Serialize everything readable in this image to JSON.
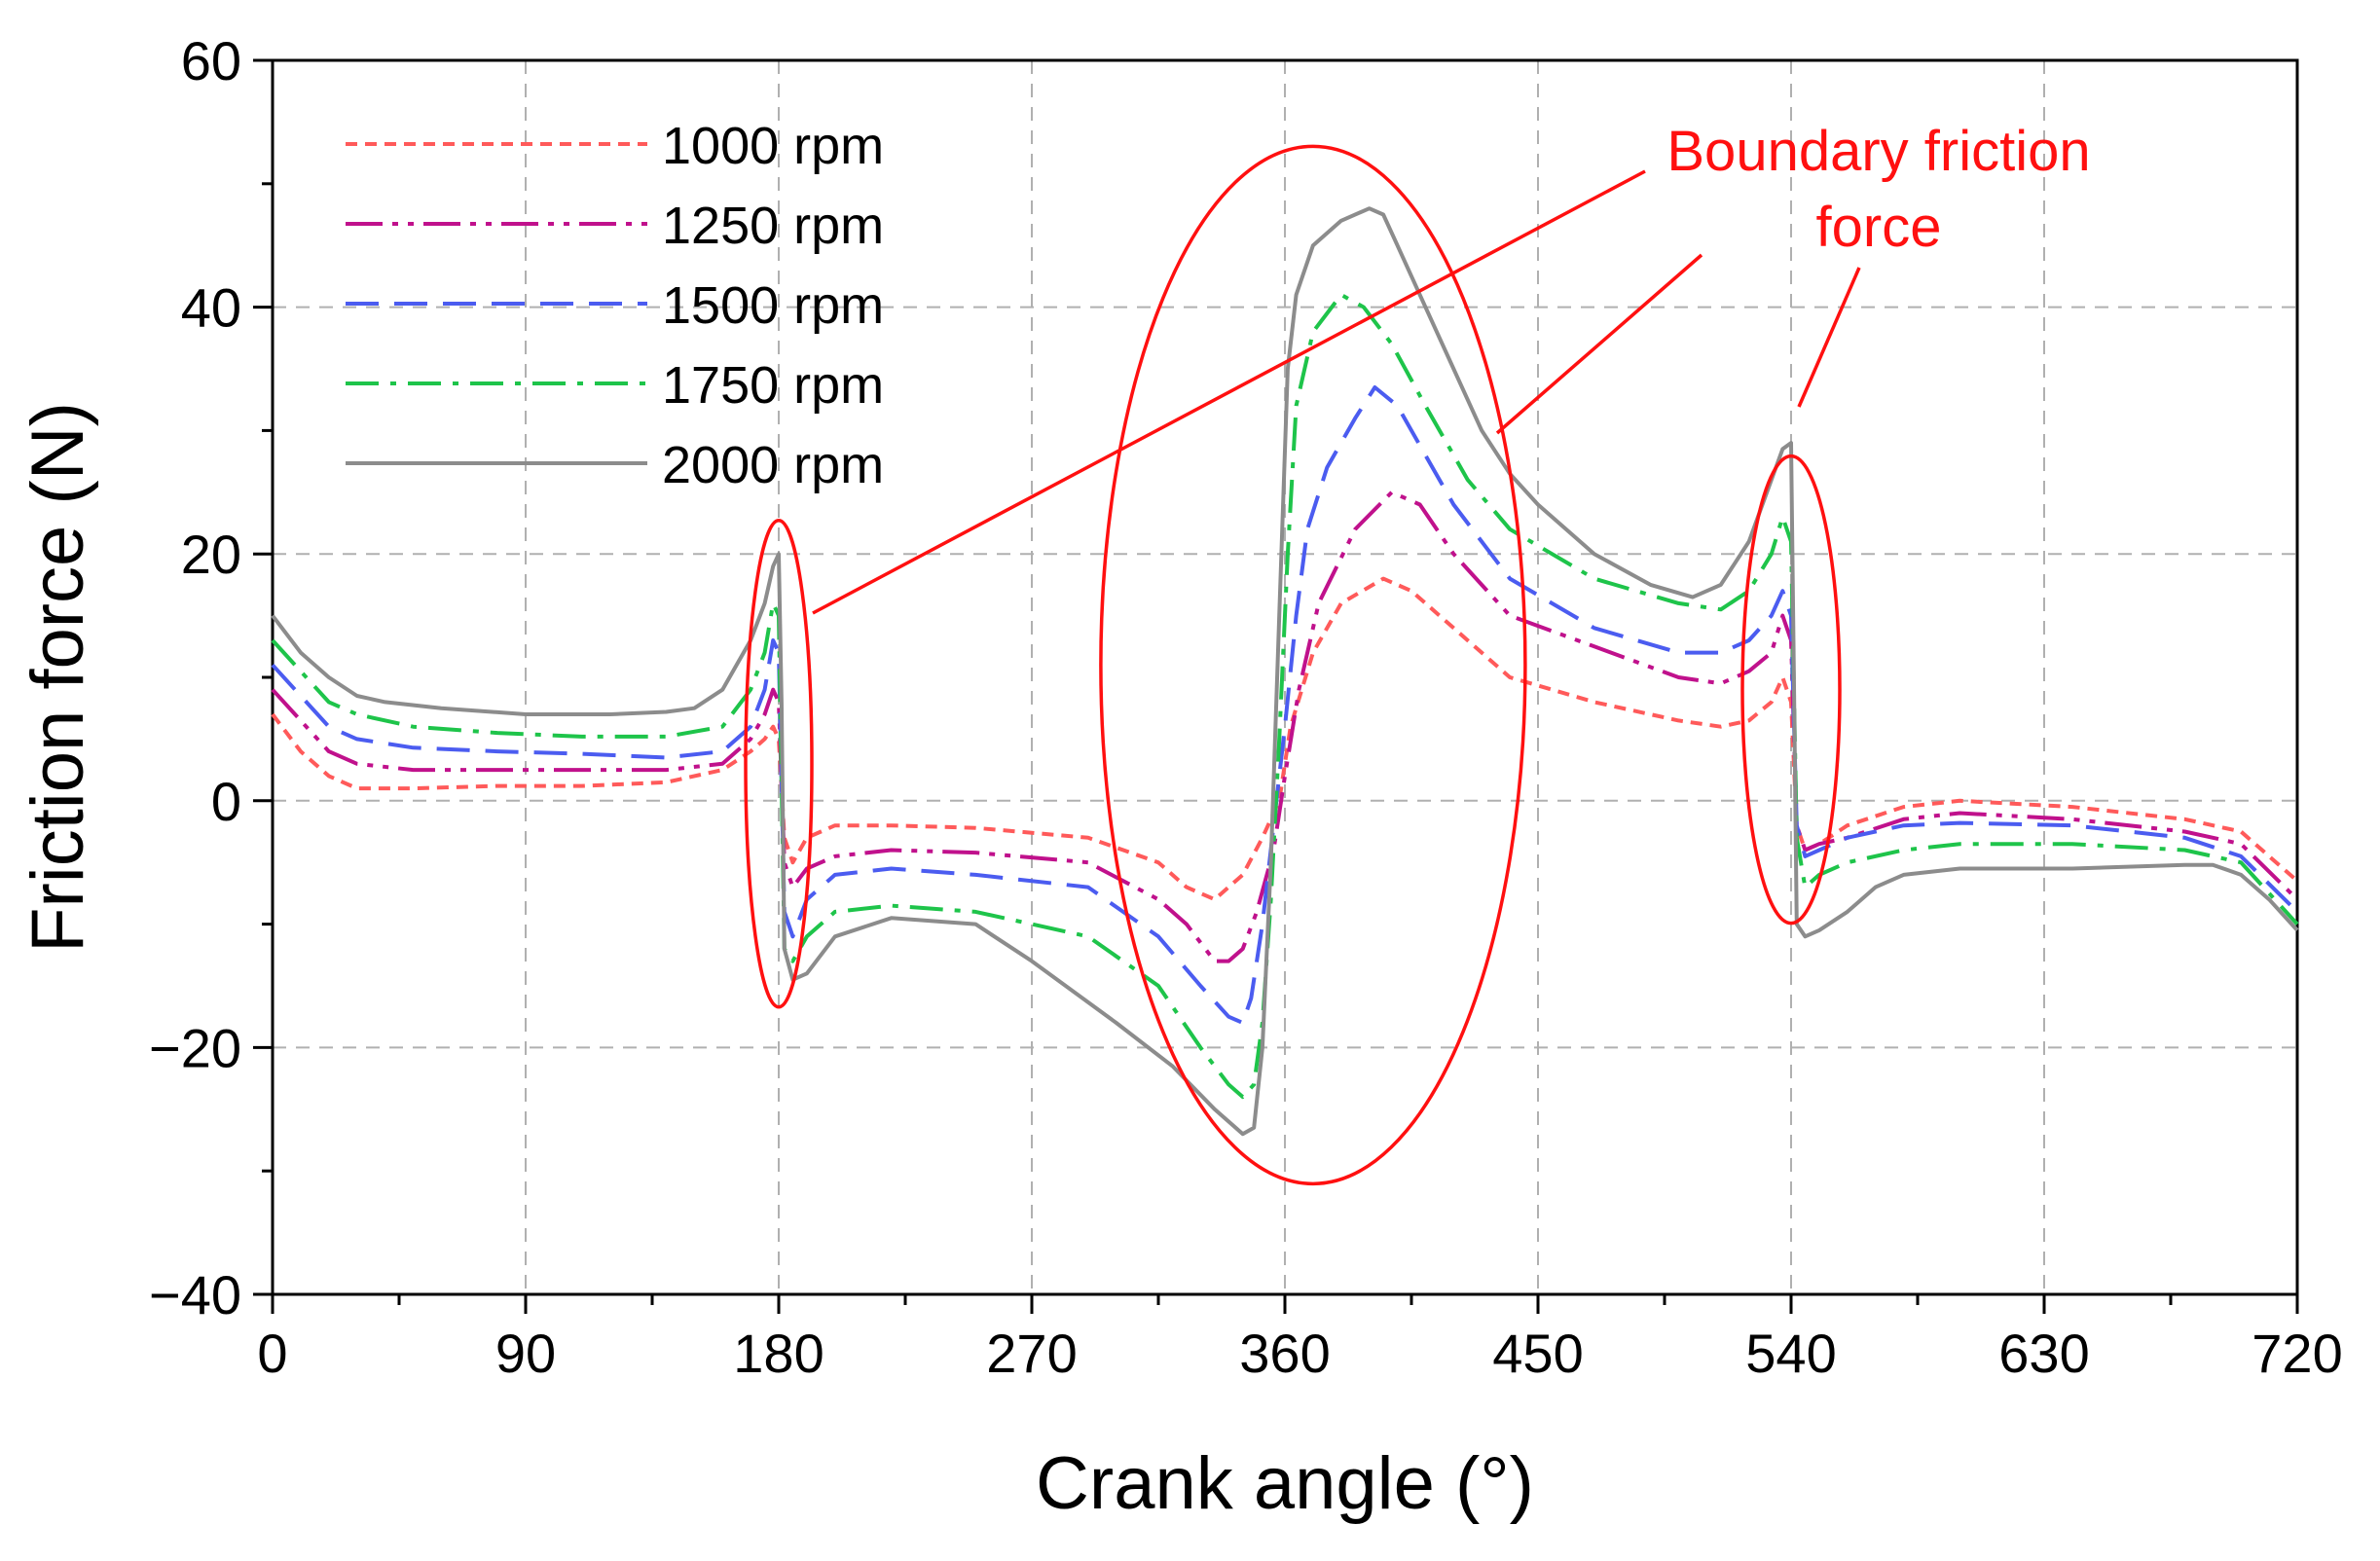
{
  "chart_data": {
    "type": "line",
    "title": "",
    "xlabel": "Crank angle (°)",
    "ylabel": "Friction force (N)",
    "xlim": [
      0,
      720
    ],
    "ylim": [
      -40,
      60
    ],
    "xticks": [
      0,
      90,
      180,
      270,
      360,
      450,
      540,
      630,
      720
    ],
    "xtick_labels": [
      "0",
      "90",
      "180",
      "270",
      "360",
      "450",
      "540",
      "630",
      "720"
    ],
    "yticks": [
      -40,
      -20,
      0,
      20,
      40,
      60
    ],
    "ytick_labels": [
      "−40",
      "−20",
      "0",
      "20",
      "40",
      "60"
    ],
    "grid": true,
    "legend_position": "top-left",
    "series": [
      {
        "name": "1000 rpm",
        "color": "#ff5a5a",
        "dash": "short-dash",
        "x": [
          0,
          10,
          20,
          30,
          50,
          80,
          110,
          140,
          160,
          170,
          175,
          178,
          180,
          182,
          185,
          190,
          200,
          220,
          250,
          290,
          315,
          325,
          335,
          345,
          352,
          358,
          362,
          370,
          380,
          395,
          405,
          420,
          440,
          470,
          500,
          515,
          525,
          533,
          537,
          540,
          542,
          545,
          550,
          560,
          580,
          600,
          640,
          680,
          700,
          720
        ],
        "y": [
          7,
          4,
          2,
          1,
          1,
          1.2,
          1.2,
          1.5,
          2.5,
          4,
          5,
          6,
          5,
          -3,
          -5,
          -3,
          -2,
          -2,
          -2.2,
          -3,
          -5,
          -7,
          -8,
          -6,
          -3,
          0,
          6,
          12,
          16,
          18,
          17,
          14,
          10,
          8,
          6.5,
          6,
          6.5,
          8,
          10,
          8,
          -2,
          -4,
          -3.5,
          -2,
          -0.5,
          0,
          -0.5,
          -1.5,
          -2.5,
          -6.5
        ]
      },
      {
        "name": "1250 rpm",
        "color": "#c0118c",
        "dash": "dash-dot-dot",
        "x": [
          0,
          10,
          20,
          30,
          50,
          80,
          110,
          140,
          160,
          170,
          175,
          178,
          180,
          182,
          185,
          190,
          200,
          220,
          250,
          290,
          315,
          325,
          335,
          340,
          345,
          350,
          356,
          360,
          365,
          372,
          385,
          398,
          408,
          420,
          440,
          470,
          500,
          515,
          525,
          533,
          537,
          540,
          542,
          545,
          550,
          560,
          580,
          600,
          640,
          680,
          700,
          720
        ],
        "y": [
          9,
          6.5,
          4,
          3,
          2.5,
          2.5,
          2.5,
          2.5,
          3,
          5,
          7,
          9,
          8,
          -5,
          -7,
          -5.5,
          -4.5,
          -4,
          -4.2,
          -5,
          -8,
          -10,
          -13,
          -13,
          -12,
          -9,
          -4,
          2,
          9,
          16,
          22,
          25,
          24,
          20,
          15,
          12.5,
          10,
          9.5,
          10.5,
          12,
          15,
          13,
          -2,
          -4,
          -3.5,
          -3,
          -1.5,
          -1,
          -1.5,
          -2.5,
          -3.5,
          -8
        ]
      },
      {
        "name": "1500 rpm",
        "color": "#4b5cf0",
        "dash": "long-dash",
        "x": [
          0,
          10,
          20,
          30,
          50,
          80,
          110,
          140,
          160,
          170,
          175,
          178,
          180,
          182,
          185,
          190,
          200,
          220,
          250,
          290,
          315,
          330,
          340,
          345,
          348,
          352,
          356,
          360,
          364,
          368,
          375,
          385,
          392,
          400,
          410,
          420,
          440,
          470,
          500,
          515,
          525,
          533,
          537,
          540,
          542,
          545,
          550,
          560,
          580,
          600,
          640,
          680,
          700,
          720
        ],
        "y": [
          11,
          8.5,
          6,
          5,
          4.3,
          4,
          3.8,
          3.5,
          4,
          6,
          9,
          13,
          12,
          -9,
          -11,
          -8,
          -6,
          -5.5,
          -6,
          -7,
          -11,
          -15,
          -17.5,
          -18,
          -16,
          -10,
          -2,
          6,
          15,
          22,
          27,
          31,
          33.5,
          32,
          28,
          24,
          18,
          14,
          12,
          12,
          13,
          15,
          17,
          15,
          -2,
          -4.5,
          -4,
          -3,
          -2,
          -1.8,
          -2,
          -3,
          -4.5,
          -9
        ]
      },
      {
        "name": "1750 rpm",
        "color": "#1ec44a",
        "dash": "dash-dot",
        "x": [
          0,
          10,
          20,
          30,
          50,
          80,
          110,
          140,
          160,
          170,
          175,
          178,
          180,
          182,
          185,
          190,
          200,
          220,
          250,
          290,
          315,
          330,
          340,
          345,
          349,
          352,
          355,
          358,
          361,
          364,
          370,
          380,
          388,
          398,
          410,
          425,
          440,
          470,
          500,
          515,
          525,
          533,
          537,
          540,
          542,
          545,
          550,
          560,
          580,
          600,
          640,
          680,
          700,
          720
        ],
        "y": [
          13,
          10.5,
          8,
          7,
          6,
          5.5,
          5.2,
          5.2,
          6,
          9,
          12,
          16,
          15,
          -12,
          -13,
          -11,
          -9,
          -8.5,
          -9,
          -11,
          -15,
          -20,
          -23,
          -24,
          -23,
          -18,
          -8,
          5,
          20,
          32,
          38,
          41,
          40,
          37,
          32,
          26,
          22,
          18,
          16,
          15.5,
          17,
          20,
          23,
          21,
          -3,
          -7,
          -6,
          -5,
          -4,
          -3.5,
          -3.5,
          -4,
          -5,
          -10
        ]
      },
      {
        "name": "2000 rpm",
        "color": "#8c8c8c",
        "dash": "solid",
        "x": [
          0,
          10,
          20,
          30,
          40,
          60,
          90,
          120,
          140,
          150,
          160,
          170,
          175,
          178,
          180,
          181,
          182,
          185,
          190,
          200,
          220,
          250,
          270,
          300,
          320,
          335,
          345,
          349,
          352,
          355,
          358,
          361,
          364,
          370,
          380,
          390,
          395,
          400,
          410,
          420,
          430,
          440,
          450,
          470,
          490,
          505,
          515,
          525,
          533,
          537,
          540,
          541,
          542,
          545,
          550,
          560,
          570,
          580,
          600,
          640,
          680,
          690,
          700,
          710,
          720
        ],
        "y": [
          15,
          12,
          10,
          8.5,
          8,
          7.5,
          7,
          7,
          7.2,
          7.5,
          9,
          13,
          16,
          19,
          20,
          8,
          -12,
          -14.5,
          -14,
          -11,
          -9.5,
          -10,
          -13,
          -18,
          -21.5,
          -25,
          -27,
          -26.5,
          -20,
          -5,
          15,
          35,
          41,
          45,
          47,
          48,
          47.5,
          45,
          40,
          35,
          30,
          26.5,
          24,
          20,
          17.5,
          16.5,
          17.5,
          21,
          26,
          28.5,
          29,
          10,
          -10,
          -11,
          -10.5,
          -9,
          -7,
          -6,
          -5.5,
          -5.5,
          -5.2,
          -5.2,
          -6,
          -8,
          -10.5
        ]
      }
    ],
    "annotations": [
      {
        "text_line1": "Boundary friction",
        "text_line2": "force",
        "color": "#ff1010"
      }
    ]
  }
}
